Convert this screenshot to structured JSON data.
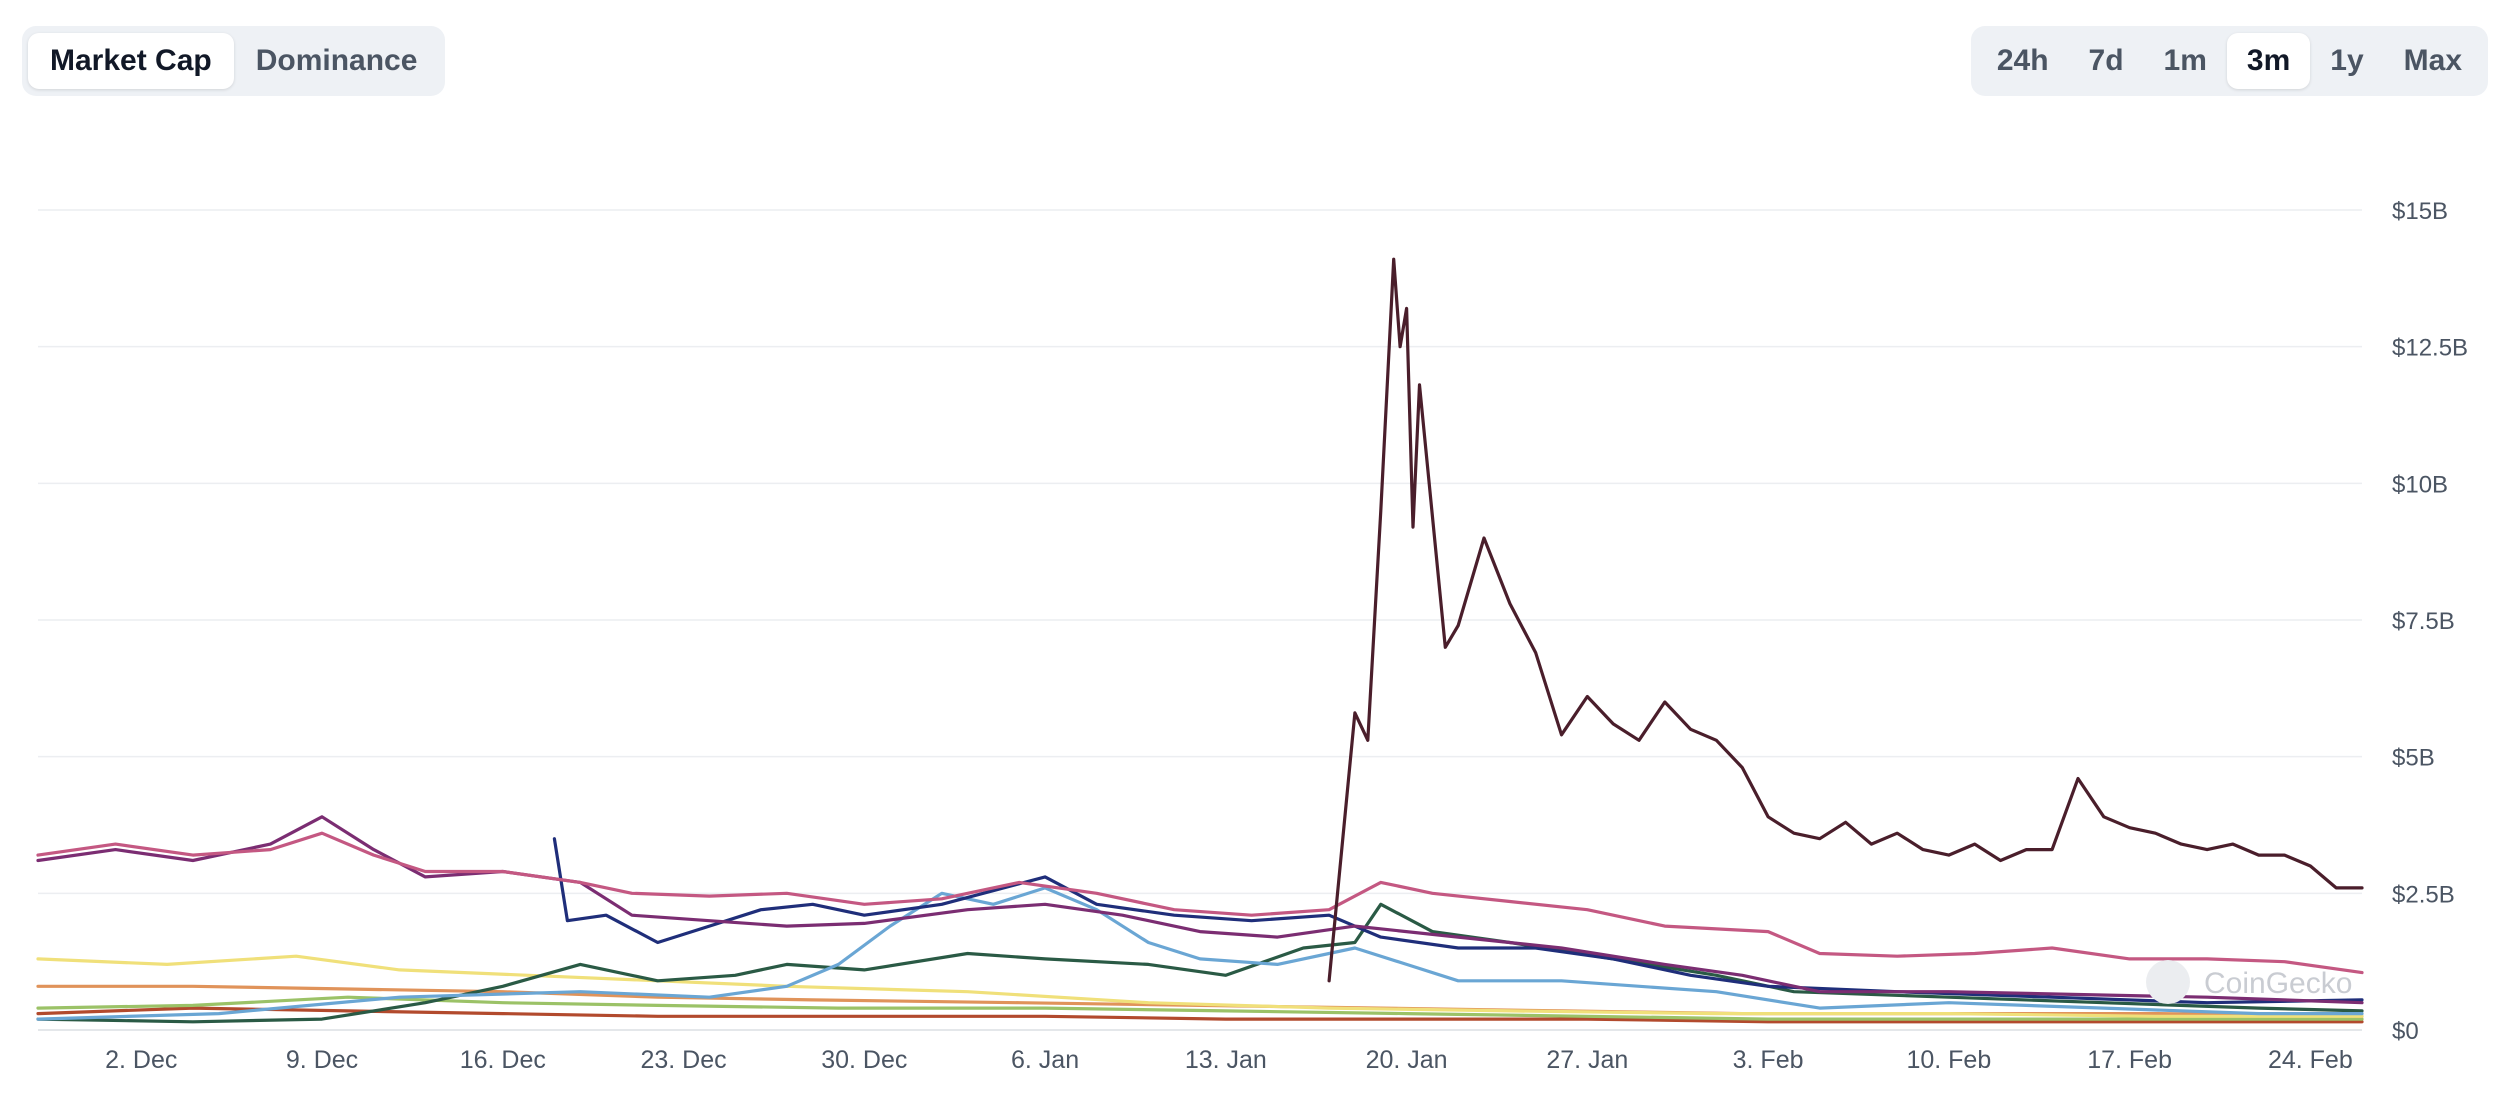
{
  "view_toggle": {
    "items": [
      {
        "label": "Market Cap",
        "active": true
      },
      {
        "label": "Dominance",
        "active": false
      }
    ]
  },
  "range_toggle": {
    "items": [
      {
        "label": "24h",
        "active": false
      },
      {
        "label": "7d",
        "active": false
      },
      {
        "label": "1m",
        "active": false
      },
      {
        "label": "3m",
        "active": true
      },
      {
        "label": "1y",
        "active": false
      },
      {
        "label": "Max",
        "active": false
      }
    ]
  },
  "watermark": "CoinGecko",
  "chart_data": {
    "type": "line",
    "x_range": [
      "2024-11-28",
      "2025-02-26"
    ],
    "x_tick_labels": [
      "2. Dec",
      "9. Dec",
      "16. Dec",
      "23. Dec",
      "30. Dec",
      "6. Jan",
      "13. Jan",
      "20. Jan",
      "27. Jan",
      "3. Feb",
      "10. Feb",
      "17. Feb",
      "24. Feb"
    ],
    "x_tick_dates": [
      "2024-12-02",
      "2024-12-09",
      "2024-12-16",
      "2024-12-23",
      "2024-12-30",
      "2025-01-06",
      "2025-01-13",
      "2025-01-20",
      "2025-01-27",
      "2025-02-03",
      "2025-02-10",
      "2025-02-17",
      "2025-02-24"
    ],
    "y_tick_labels": [
      "$0",
      "$2.5B",
      "$5B",
      "$7.5B",
      "$10B",
      "$12.5B",
      "$15B"
    ],
    "y_tick_values": [
      0,
      2.5,
      5,
      7.5,
      10,
      12.5,
      15
    ],
    "ylim": [
      0,
      15
    ],
    "y_unit": "USD billions",
    "grid": "horizontal",
    "legend": "none",
    "series": [
      {
        "color": "#4a1e2b",
        "points": [
          [
            "2025-01-17",
            0.9
          ],
          [
            "2025-01-18",
            5.8
          ],
          [
            "2025-01-18T12:00",
            5.3
          ],
          [
            "2025-01-19",
            9.5
          ],
          [
            "2025-01-19T12:00",
            14.1
          ],
          [
            "2025-01-19T18:00",
            12.5
          ],
          [
            "2025-01-20",
            13.2
          ],
          [
            "2025-01-20T06:00",
            9.2
          ],
          [
            "2025-01-20T12:00",
            11.8
          ],
          [
            "2025-01-21",
            9.4
          ],
          [
            "2025-01-21T12:00",
            7.0
          ],
          [
            "2025-01-22",
            7.4
          ],
          [
            "2025-01-23",
            9.0
          ],
          [
            "2025-01-24",
            7.8
          ],
          [
            "2025-01-25",
            6.9
          ],
          [
            "2025-01-26",
            5.4
          ],
          [
            "2025-01-27",
            6.1
          ],
          [
            "2025-01-28",
            5.6
          ],
          [
            "2025-01-29",
            5.3
          ],
          [
            "2025-01-30",
            6.0
          ],
          [
            "2025-01-31",
            5.5
          ],
          [
            "2025-02-01",
            5.3
          ],
          [
            "2025-02-02",
            4.8
          ],
          [
            "2025-02-03",
            3.9
          ],
          [
            "2025-02-04",
            3.6
          ],
          [
            "2025-02-05",
            3.5
          ],
          [
            "2025-02-06",
            3.8
          ],
          [
            "2025-02-07",
            3.4
          ],
          [
            "2025-02-08",
            3.6
          ],
          [
            "2025-02-09",
            3.3
          ],
          [
            "2025-02-10",
            3.2
          ],
          [
            "2025-02-11",
            3.4
          ],
          [
            "2025-02-12",
            3.1
          ],
          [
            "2025-02-13",
            3.3
          ],
          [
            "2025-02-14",
            3.3
          ],
          [
            "2025-02-15",
            4.6
          ],
          [
            "2025-02-16",
            3.9
          ],
          [
            "2025-02-17",
            3.7
          ],
          [
            "2025-02-18",
            3.6
          ],
          [
            "2025-02-19",
            3.4
          ],
          [
            "2025-02-20",
            3.3
          ],
          [
            "2025-02-21",
            3.4
          ],
          [
            "2025-02-22",
            3.2
          ],
          [
            "2025-02-23",
            3.2
          ],
          [
            "2025-02-24",
            3.0
          ],
          [
            "2025-02-25",
            2.6
          ],
          [
            "2025-02-26",
            2.6
          ]
        ]
      },
      {
        "color": "#c45882",
        "points": [
          [
            "2024-11-28",
            3.2
          ],
          [
            "2024-12-01",
            3.4
          ],
          [
            "2024-12-04",
            3.2
          ],
          [
            "2024-12-07",
            3.3
          ],
          [
            "2024-12-09",
            3.6
          ],
          [
            "2024-12-11",
            3.2
          ],
          [
            "2024-12-13",
            2.9
          ],
          [
            "2024-12-16",
            2.9
          ],
          [
            "2024-12-19",
            2.7
          ],
          [
            "2024-12-21",
            2.5
          ],
          [
            "2024-12-24",
            2.45
          ],
          [
            "2024-12-27",
            2.5
          ],
          [
            "2024-12-30",
            2.3
          ],
          [
            "2025-01-02",
            2.4
          ],
          [
            "2025-01-05",
            2.7
          ],
          [
            "2025-01-08",
            2.5
          ],
          [
            "2025-01-11",
            2.2
          ],
          [
            "2025-01-14",
            2.1
          ],
          [
            "2025-01-17",
            2.2
          ],
          [
            "2025-01-19",
            2.7
          ],
          [
            "2025-01-21",
            2.5
          ],
          [
            "2025-01-24",
            2.35
          ],
          [
            "2025-01-27",
            2.2
          ],
          [
            "2025-01-30",
            1.9
          ],
          [
            "2025-02-03",
            1.8
          ],
          [
            "2025-02-05",
            1.4
          ],
          [
            "2025-02-08",
            1.35
          ],
          [
            "2025-02-11",
            1.4
          ],
          [
            "2025-02-14",
            1.5
          ],
          [
            "2025-02-17",
            1.3
          ],
          [
            "2025-02-20",
            1.3
          ],
          [
            "2025-02-23",
            1.25
          ],
          [
            "2025-02-26",
            1.05
          ]
        ]
      },
      {
        "color": "#7b2d72",
        "points": [
          [
            "2024-11-28",
            3.1
          ],
          [
            "2024-12-01",
            3.3
          ],
          [
            "2024-12-04",
            3.1
          ],
          [
            "2024-12-07",
            3.4
          ],
          [
            "2024-12-09",
            3.9
          ],
          [
            "2024-12-11",
            3.3
          ],
          [
            "2024-12-13",
            2.8
          ],
          [
            "2024-12-16",
            2.9
          ],
          [
            "2024-12-19",
            2.7
          ],
          [
            "2024-12-21",
            2.1
          ],
          [
            "2024-12-24",
            2.0
          ],
          [
            "2024-12-27",
            1.9
          ],
          [
            "2024-12-30",
            1.95
          ],
          [
            "2025-01-03",
            2.2
          ],
          [
            "2025-01-06",
            2.3
          ],
          [
            "2025-01-09",
            2.1
          ],
          [
            "2025-01-12",
            1.8
          ],
          [
            "2025-01-15",
            1.7
          ],
          [
            "2025-01-18",
            1.9
          ],
          [
            "2025-01-22",
            1.7
          ],
          [
            "2025-01-26",
            1.5
          ],
          [
            "2025-01-30",
            1.2
          ],
          [
            "2025-02-02",
            1.0
          ],
          [
            "2025-02-05",
            0.7
          ],
          [
            "2025-02-10",
            0.7
          ],
          [
            "2025-02-15",
            0.65
          ],
          [
            "2025-02-20",
            0.6
          ],
          [
            "2025-02-26",
            0.5
          ]
        ]
      },
      {
        "color": "#1f2e7a",
        "points": [
          [
            "2024-12-18",
            3.5
          ],
          [
            "2024-12-18T12:00",
            2.0
          ],
          [
            "2024-12-20",
            2.1
          ],
          [
            "2024-12-22",
            1.6
          ],
          [
            "2024-12-24",
            1.9
          ],
          [
            "2024-12-26",
            2.2
          ],
          [
            "2024-12-28",
            2.3
          ],
          [
            "2024-12-30",
            2.1
          ],
          [
            "2025-01-02",
            2.3
          ],
          [
            "2025-01-06",
            2.8
          ],
          [
            "2025-01-08",
            2.3
          ],
          [
            "2025-01-11",
            2.1
          ],
          [
            "2025-01-14",
            2.0
          ],
          [
            "2025-01-17",
            2.1
          ],
          [
            "2025-01-19",
            1.7
          ],
          [
            "2025-01-22",
            1.5
          ],
          [
            "2025-01-25",
            1.5
          ],
          [
            "2025-01-28",
            1.3
          ],
          [
            "2025-01-31",
            1.0
          ],
          [
            "2025-02-03",
            0.8
          ],
          [
            "2025-02-08",
            0.7
          ],
          [
            "2025-02-14",
            0.6
          ],
          [
            "2025-02-20",
            0.5
          ],
          [
            "2025-02-26",
            0.55
          ]
        ]
      },
      {
        "color": "#6aa6d4",
        "points": [
          [
            "2024-11-28",
            0.2
          ],
          [
            "2024-12-05",
            0.3
          ],
          [
            "2024-12-12",
            0.6
          ],
          [
            "2024-12-19",
            0.7
          ],
          [
            "2024-12-24",
            0.6
          ],
          [
            "2024-12-27",
            0.8
          ],
          [
            "2024-12-29",
            1.2
          ],
          [
            "2024-12-31",
            1.9
          ],
          [
            "2025-01-02",
            2.5
          ],
          [
            "2025-01-04",
            2.3
          ],
          [
            "2025-01-06",
            2.6
          ],
          [
            "2025-01-08",
            2.2
          ],
          [
            "2025-01-10",
            1.6
          ],
          [
            "2025-01-12",
            1.3
          ],
          [
            "2025-01-15",
            1.2
          ],
          [
            "2025-01-18",
            1.5
          ],
          [
            "2025-01-20",
            1.2
          ],
          [
            "2025-01-22",
            0.9
          ],
          [
            "2025-01-26",
            0.9
          ],
          [
            "2025-02-01",
            0.7
          ],
          [
            "2025-02-05",
            0.4
          ],
          [
            "2025-02-10",
            0.5
          ],
          [
            "2025-02-16",
            0.4
          ],
          [
            "2025-02-22",
            0.3
          ],
          [
            "2025-02-26",
            0.3
          ]
        ]
      },
      {
        "color": "#2a5a45",
        "points": [
          [
            "2024-11-28",
            0.2
          ],
          [
            "2024-12-04",
            0.15
          ],
          [
            "2024-12-09",
            0.2
          ],
          [
            "2024-12-13",
            0.5
          ],
          [
            "2024-12-16",
            0.8
          ],
          [
            "2024-12-19",
            1.2
          ],
          [
            "2024-12-22",
            0.9
          ],
          [
            "2024-12-25",
            1.0
          ],
          [
            "2024-12-27",
            1.2
          ],
          [
            "2024-12-30",
            1.1
          ],
          [
            "2025-01-03",
            1.4
          ],
          [
            "2025-01-06",
            1.3
          ],
          [
            "2025-01-10",
            1.2
          ],
          [
            "2025-01-13",
            1.0
          ],
          [
            "2025-01-16",
            1.5
          ],
          [
            "2025-01-18",
            1.6
          ],
          [
            "2025-01-19",
            2.3
          ],
          [
            "2025-01-21",
            1.8
          ],
          [
            "2025-01-24",
            1.6
          ],
          [
            "2025-01-28",
            1.3
          ],
          [
            "2025-02-01",
            1.0
          ],
          [
            "2025-02-04",
            0.7
          ],
          [
            "2025-02-10",
            0.6
          ],
          [
            "2025-02-16",
            0.5
          ],
          [
            "2025-02-22",
            0.4
          ],
          [
            "2025-02-26",
            0.35
          ]
        ]
      },
      {
        "color": "#f0e07a",
        "points": [
          [
            "2024-11-28",
            1.3
          ],
          [
            "2024-12-03",
            1.2
          ],
          [
            "2024-12-08",
            1.35
          ],
          [
            "2024-12-12",
            1.1
          ],
          [
            "2024-12-17",
            1.0
          ],
          [
            "2024-12-22",
            0.9
          ],
          [
            "2024-12-27",
            0.8
          ],
          [
            "2025-01-03",
            0.7
          ],
          [
            "2025-01-10",
            0.5
          ],
          [
            "2025-01-17",
            0.4
          ],
          [
            "2025-01-24",
            0.35
          ],
          [
            "2025-02-01",
            0.3
          ],
          [
            "2025-02-10",
            0.3
          ],
          [
            "2025-02-18",
            0.25
          ],
          [
            "2025-02-26",
            0.25
          ]
        ]
      },
      {
        "color": "#e0935a",
        "points": [
          [
            "2024-11-28",
            0.8
          ],
          [
            "2024-12-04",
            0.8
          ],
          [
            "2024-12-10",
            0.75
          ],
          [
            "2024-12-16",
            0.7
          ],
          [
            "2024-12-22",
            0.6
          ],
          [
            "2024-12-28",
            0.55
          ],
          [
            "2025-01-05",
            0.5
          ],
          [
            "2025-01-12",
            0.45
          ],
          [
            "2025-01-19",
            0.4
          ],
          [
            "2025-01-26",
            0.35
          ],
          [
            "2025-02-02",
            0.3
          ],
          [
            "2025-02-10",
            0.3
          ],
          [
            "2025-02-18",
            0.3
          ],
          [
            "2025-02-26",
            0.25
          ]
        ]
      },
      {
        "color": "#9bc267",
        "points": [
          [
            "2024-11-28",
            0.4
          ],
          [
            "2024-12-04",
            0.45
          ],
          [
            "2024-12-10",
            0.6
          ],
          [
            "2024-12-16",
            0.5
          ],
          [
            "2024-12-22",
            0.45
          ],
          [
            "2024-12-29",
            0.4
          ],
          [
            "2025-01-06",
            0.4
          ],
          [
            "2025-01-13",
            0.35
          ],
          [
            "2025-01-20",
            0.3
          ],
          [
            "2025-01-27",
            0.25
          ],
          [
            "2025-02-03",
            0.2
          ],
          [
            "2025-02-12",
            0.2
          ],
          [
            "2025-02-20",
            0.2
          ],
          [
            "2025-02-26",
            0.2
          ]
        ]
      },
      {
        "color": "#b24a2d",
        "points": [
          [
            "2024-11-28",
            0.3
          ],
          [
            "2024-12-04",
            0.4
          ],
          [
            "2024-12-10",
            0.35
          ],
          [
            "2024-12-16",
            0.3
          ],
          [
            "2024-12-22",
            0.25
          ],
          [
            "2024-12-29",
            0.25
          ],
          [
            "2025-01-06",
            0.25
          ],
          [
            "2025-01-13",
            0.2
          ],
          [
            "2025-01-20",
            0.2
          ],
          [
            "2025-01-27",
            0.2
          ],
          [
            "2025-02-03",
            0.15
          ],
          [
            "2025-02-12",
            0.15
          ],
          [
            "2025-02-20",
            0.15
          ],
          [
            "2025-02-26",
            0.15
          ]
        ]
      }
    ]
  }
}
